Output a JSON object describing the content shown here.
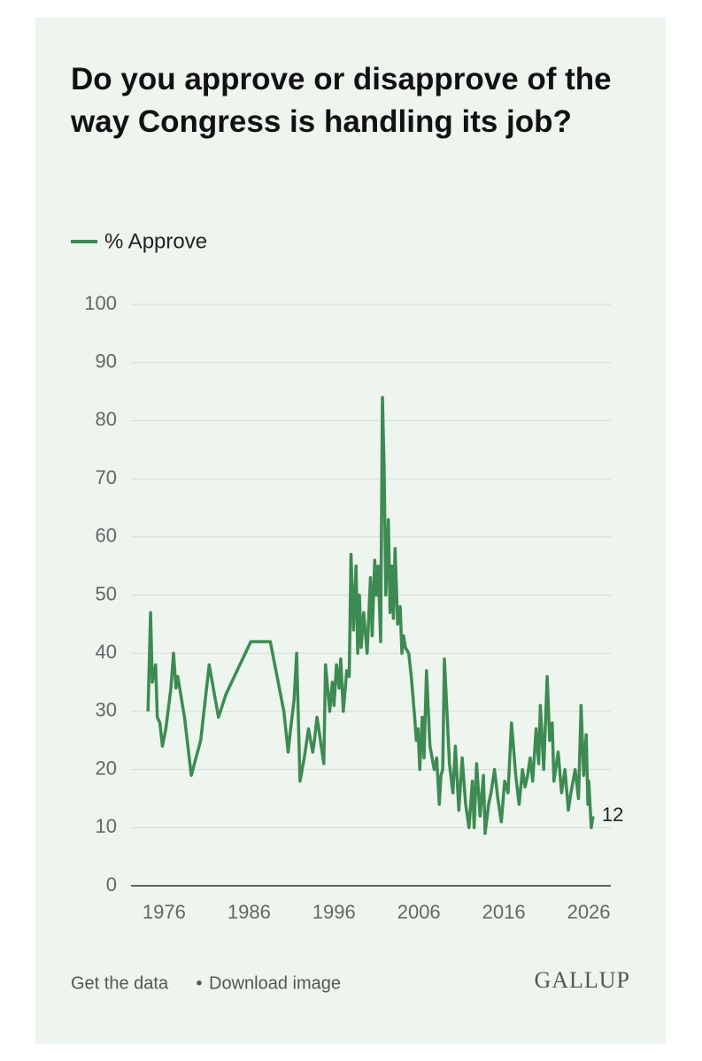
{
  "chart_data": {
    "type": "line",
    "title": "Do you approve or disapprove of the way Congress is handling its job?",
    "source": "GALLUP",
    "links": [
      "Get the data",
      "Download image"
    ],
    "link_separator": "•",
    "xlim": [
      1972.1,
      2028.6
    ],
    "xticks": [
      1976,
      1986,
      1996,
      2006,
      2016,
      2026
    ],
    "ylim": [
      0,
      100
    ],
    "yticks": [
      0,
      10,
      20,
      30,
      40,
      50,
      60,
      70,
      80,
      90,
      100
    ],
    "grid": true,
    "legend": "top-left",
    "x": [
      1974.1,
      1974.4,
      1974.6,
      1975.0,
      1975.2,
      1975.5,
      1975.8,
      1976.2,
      1976.8,
      1977.1,
      1977.4,
      1977.6,
      1978.4,
      1979.2,
      1980.3,
      1981.3,
      1982.4,
      1983.3,
      1986.2,
      1988.5,
      1990.1,
      1990.6,
      1990.9,
      1991.3,
      1991.6,
      1992.0,
      1992.5,
      1993.0,
      1993.5,
      1993.7,
      1994.0,
      1994.3,
      1994.8,
      1995.0,
      1995.5,
      1995.8,
      1996.0,
      1996.3,
      1996.6,
      1996.8,
      1997.1,
      1997.5,
      1997.8,
      1998.0,
      1998.3,
      1998.6,
      1998.8,
      1999.0,
      1999.2,
      1999.5,
      1999.9,
      2000.3,
      2000.5,
      2000.8,
      2001.0,
      2001.2,
      2001.5,
      2001.7,
      2001.9,
      2002.1,
      2002.4,
      2002.6,
      2002.8,
      2003.0,
      2003.2,
      2003.5,
      2003.8,
      2004.0,
      2004.2,
      2004.4,
      2004.8,
      2005.1,
      2005.5,
      2005.7,
      2005.9,
      2006.1,
      2006.4,
      2006.6,
      2006.9,
      2007.3,
      2007.8,
      2008.1,
      2008.4,
      2008.6,
      2008.8,
      2009.0,
      2009.3,
      2009.6,
      2010.0,
      2010.3,
      2010.7,
      2011.1,
      2011.5,
      2011.9,
      2012.3,
      2012.5,
      2012.8,
      2013.2,
      2013.6,
      2013.8,
      2014.2,
      2014.5,
      2014.9,
      2015.3,
      2015.7,
      2016.1,
      2016.5,
      2016.9,
      2017.4,
      2017.8,
      2018.2,
      2018.5,
      2018.8,
      2019.1,
      2019.4,
      2019.8,
      2020.1,
      2020.3,
      2020.7,
      2021.1,
      2021.4,
      2021.7,
      2021.9,
      2022.4,
      2022.8,
      2023.2,
      2023.6,
      2023.9,
      2024.4,
      2024.8,
      2025.1,
      2025.4,
      2025.7,
      2025.9,
      2026.0,
      2026.3,
      2026.5
    ],
    "series": [
      {
        "name": "% Approve",
        "color": "#3d8b52",
        "values": [
          30,
          47,
          35,
          38,
          29,
          28,
          24,
          27,
          34,
          40,
          34,
          36,
          29,
          19,
          25,
          38,
          29,
          33,
          42,
          42,
          30,
          23,
          27,
          32,
          40,
          18,
          22,
          27,
          23,
          25,
          29,
          26,
          21,
          38,
          30,
          35,
          31,
          38,
          34,
          39,
          30,
          37,
          36,
          57,
          44,
          55,
          40,
          50,
          41,
          47,
          40,
          53,
          43,
          56,
          50,
          55,
          42,
          84,
          72,
          50,
          63,
          47,
          55,
          46,
          58,
          45,
          48,
          40,
          43,
          41,
          40,
          36,
          29,
          25,
          27,
          20,
          29,
          22,
          37,
          24,
          20,
          22,
          14,
          19,
          20,
          39,
          30,
          21,
          16,
          24,
          13,
          22,
          14,
          10,
          18,
          10,
          21,
          12,
          19,
          9,
          14,
          16,
          20,
          15,
          11,
          18,
          16,
          28,
          19,
          14,
          20,
          17,
          19,
          22,
          18,
          27,
          21,
          31,
          20,
          36,
          25,
          28,
          18,
          23,
          16,
          20,
          13,
          16,
          20,
          15,
          31,
          19,
          26,
          14,
          18,
          10,
          12
        ]
      }
    ]
  }
}
